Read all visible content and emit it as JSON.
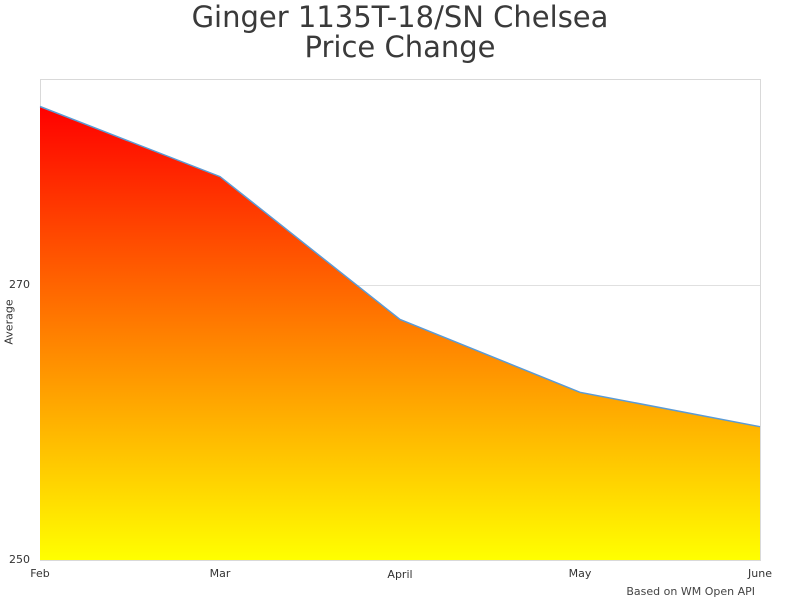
{
  "chart_data": {
    "type": "area",
    "title": "Ginger 1135T-18/SN Chelsea",
    "subtitle": "Price Change",
    "categories": [
      "Feb",
      "Mar",
      "April",
      "May",
      "June"
    ],
    "series": [
      {
        "name": "Average",
        "values": [
          283.0,
          277.9,
          267.5,
          262.2,
          259.7
        ]
      }
    ],
    "xlabel": "",
    "ylabel": "Average",
    "ylim": [
      250,
      285
    ],
    "yticks": [
      250,
      270
    ],
    "grid": true,
    "legend": "none",
    "fill_gradient": {
      "top": "#ff0000",
      "bottom": "#ffff00"
    },
    "line_color": "#5b9bd5",
    "credit": "Based on WM Open API"
  }
}
